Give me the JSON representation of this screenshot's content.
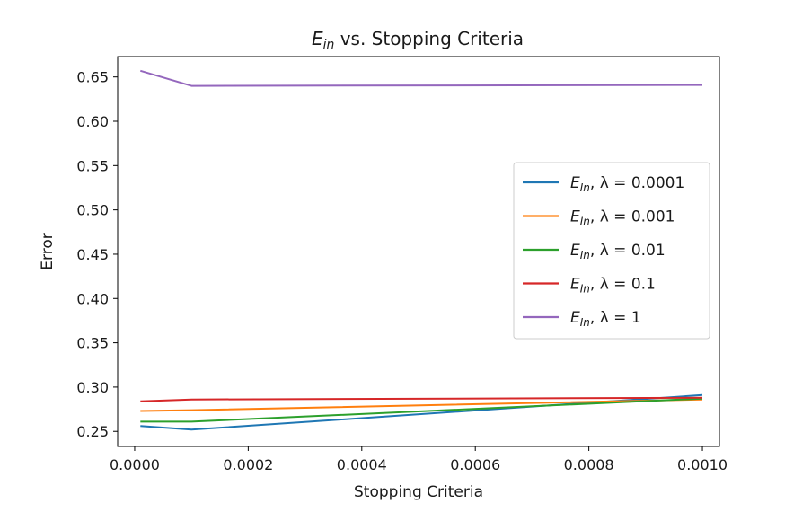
{
  "chart_data": {
    "type": "line",
    "title": {
      "symbol": "E",
      "subscript": "in",
      "rest": " vs. Stopping Criteria"
    },
    "xlabel": "Stopping Criteria",
    "ylabel": "Error",
    "xlim": [
      -3e-05,
      0.00103
    ],
    "ylim": [
      0.233,
      0.673
    ],
    "x_ticks": [
      0.0,
      0.0002,
      0.0004,
      0.0006,
      0.0008,
      0.001
    ],
    "x_tick_labels": [
      "0.0000",
      "0.0002",
      "0.0004",
      "0.0006",
      "0.0008",
      "0.0010"
    ],
    "y_ticks": [
      0.25,
      0.3,
      0.35,
      0.4,
      0.45,
      0.5,
      0.55,
      0.6,
      0.65
    ],
    "y_tick_labels": [
      "0.25",
      "0.30",
      "0.35",
      "0.40",
      "0.45",
      "0.50",
      "0.55",
      "0.60",
      "0.65"
    ],
    "grid": false,
    "legend_position": "center-right",
    "x": [
      1e-05,
      0.0001,
      0.001
    ],
    "series": [
      {
        "name": "E_in, λ = 0.0001",
        "legend": {
          "sym": "E",
          "sub": "In",
          "rest": ", λ = 0.0001"
        },
        "color": "#1f77b4",
        "values": [
          0.256,
          0.252,
          0.291
        ]
      },
      {
        "name": "E_in, λ = 0.001",
        "legend": {
          "sym": "E",
          "sub": "In",
          "rest": ", λ = 0.001"
        },
        "color": "#ff7f0e",
        "values": [
          0.273,
          0.274,
          0.286
        ]
      },
      {
        "name": "E_in, λ = 0.01",
        "legend": {
          "sym": "E",
          "sub": "In",
          "rest": ", λ = 0.01"
        },
        "color": "#2ca02c",
        "values": [
          0.261,
          0.261,
          0.287
        ]
      },
      {
        "name": "E_in, λ = 0.1",
        "legend": {
          "sym": "E",
          "sub": "In",
          "rest": ", λ = 0.1"
        },
        "color": "#d62728",
        "values": [
          0.284,
          0.286,
          0.288
        ]
      },
      {
        "name": "E_in, λ = 1",
        "legend": {
          "sym": "E",
          "sub": "In",
          "rest": ", λ = 1"
        },
        "color": "#9467bd",
        "values": [
          0.657,
          0.64,
          0.641
        ]
      }
    ]
  }
}
